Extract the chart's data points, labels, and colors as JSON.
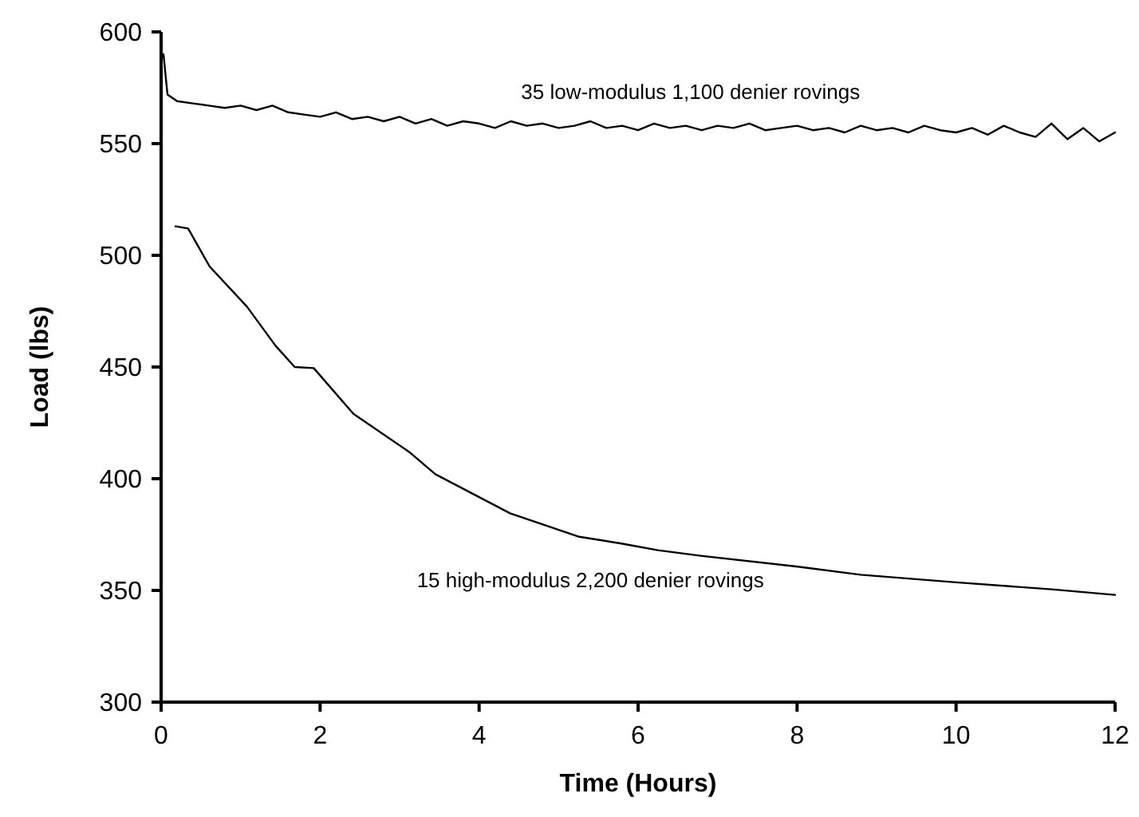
{
  "chart_data": {
    "type": "line",
    "xlabel": "Time (Hours)",
    "ylabel": "Load (lbs)",
    "xlim": [
      0,
      12
    ],
    "xticks": [
      0,
      2,
      4,
      6,
      8,
      10,
      12
    ],
    "ylim": [
      300,
      600
    ],
    "yticks": [
      300,
      350,
      400,
      450,
      500,
      550,
      600
    ],
    "grid": false,
    "marker": "none",
    "line_style": "solid",
    "series": [
      {
        "name": "35 low-modulus 1,100 denier rovings",
        "color": "#000000",
        "x": [
          0,
          0.03,
          0.08,
          0.2,
          0.4,
          0.6,
          0.8,
          1,
          1.2,
          1.4,
          1.6,
          1.8,
          2,
          2.2,
          2.4,
          2.6,
          2.8,
          3,
          3.2,
          3.4,
          3.6,
          3.8,
          4,
          4.2,
          4.4,
          4.6,
          4.8,
          5,
          5.2,
          5.4,
          5.6,
          5.8,
          6,
          6.2,
          6.4,
          6.6,
          6.8,
          7,
          7.2,
          7.4,
          7.6,
          7.8,
          8,
          8.2,
          8.4,
          8.6,
          8.8,
          9,
          9.2,
          9.4,
          9.6,
          9.8,
          10,
          10.2,
          10.4,
          10.6,
          10.8,
          11,
          11.2,
          11.4,
          11.6,
          11.8,
          12
        ],
        "values": [
          588,
          590,
          572,
          569,
          568,
          567,
          566,
          567,
          565,
          567,
          564,
          563,
          562,
          564,
          561,
          562,
          560,
          562,
          559,
          561,
          558,
          560,
          559,
          557,
          560,
          558,
          559,
          557,
          558,
          560,
          557,
          558,
          556,
          559,
          557,
          558,
          556,
          558,
          557,
          559,
          556,
          557,
          558,
          556,
          557,
          555,
          558,
          556,
          557,
          555,
          558,
          556,
          555,
          557,
          554,
          558,
          555,
          553,
          559,
          552,
          557,
          551,
          555
        ]
      },
      {
        "name": "15 high-modulus 2,200 denier rovings",
        "color": "#000000",
        "x": [
          0.18,
          0.34,
          0.61,
          1.08,
          1.44,
          1.68,
          1.92,
          2.42,
          3.12,
          3.45,
          4.39,
          5.26,
          5.79,
          6.25,
          6.79,
          7.99,
          8.8,
          10,
          11.2,
          12
        ],
        "values": [
          513,
          512,
          495,
          477,
          459.5,
          450,
          449.5,
          429,
          412,
          402,
          384.5,
          374,
          371,
          368,
          365.5,
          360.7,
          357,
          353.6,
          350.5,
          348
        ]
      }
    ]
  }
}
